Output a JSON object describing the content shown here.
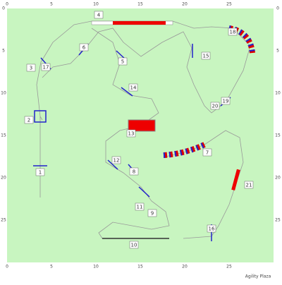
{
  "course": {
    "x_axis": [
      0,
      5,
      10,
      15,
      20,
      25
    ],
    "y_axis": [
      0,
      5,
      10,
      15,
      20,
      25
    ],
    "obstacles": [
      "1",
      "2",
      "3",
      "4",
      "5",
      "6",
      "7",
      "8",
      "9",
      "10",
      "11",
      "12",
      "13",
      "14",
      "15",
      "16",
      "17",
      "18",
      "19",
      "20",
      "21"
    ],
    "venue": "Agility Plaza"
  }
}
